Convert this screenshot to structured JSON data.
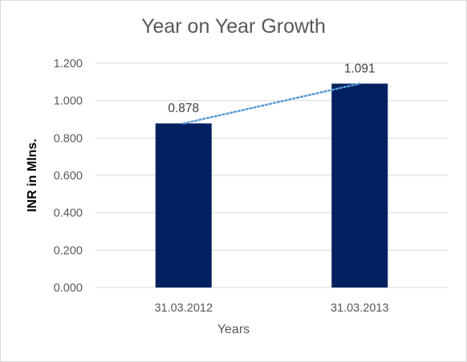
{
  "chart_data": {
    "type": "bar",
    "title": "Year on Year Growth",
    "xlabel": "Years",
    "ylabel": "INR in Mlns.",
    "categories": [
      "31.03.2012",
      "31.03.2013"
    ],
    "values": [
      0.878,
      1.091
    ],
    "value_labels": [
      "0.878",
      "1.091"
    ],
    "ylim": [
      0,
      1.2
    ],
    "yticks": [
      0,
      0.2,
      0.4,
      0.6,
      0.8,
      1.0,
      1.2
    ],
    "ytick_labels": [
      "0.000",
      "0.200",
      "0.400",
      "0.600",
      "0.800",
      "1.000",
      "1.200"
    ],
    "grid": true,
    "trendline": "linear, dotted",
    "colors": {
      "bar": "#002060",
      "trendline": "#5b9bd5",
      "grid": "#d9d9d9",
      "text": "#595959"
    }
  }
}
